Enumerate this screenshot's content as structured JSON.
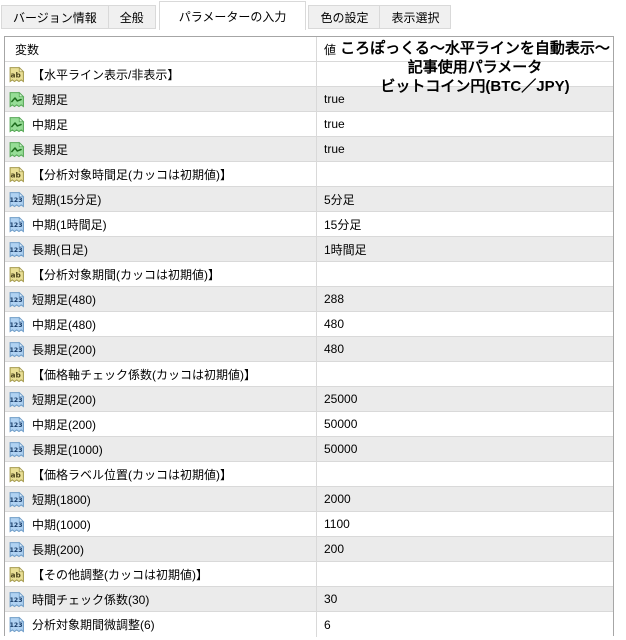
{
  "tabs": [
    {
      "label": "バージョン情報",
      "active": false
    },
    {
      "label": "全般",
      "active": false
    },
    {
      "label": "パラメーターの入力",
      "active": true
    },
    {
      "label": "色の設定",
      "active": false
    },
    {
      "label": "表示選択",
      "active": false
    }
  ],
  "table": {
    "columns": {
      "variable": "変数",
      "value": "値"
    },
    "rows": [
      {
        "type": "section",
        "label": "【水平ライン表示/非表示】",
        "value": ""
      },
      {
        "type": "bool",
        "label": "短期足",
        "value": "true"
      },
      {
        "type": "bool",
        "label": "中期足",
        "value": "true"
      },
      {
        "type": "bool",
        "label": "長期足",
        "value": "true"
      },
      {
        "type": "section",
        "label": "【分析対象時間足(カッコは初期値)】",
        "value": ""
      },
      {
        "type": "int",
        "label": "短期(15分足)",
        "value": "5分足"
      },
      {
        "type": "int",
        "label": "中期(1時間足)",
        "value": "15分足"
      },
      {
        "type": "int",
        "label": "長期(日足)",
        "value": "1時間足"
      },
      {
        "type": "section",
        "label": "【分析対象期間(カッコは初期値)】",
        "value": ""
      },
      {
        "type": "int",
        "label": "短期足(480)",
        "value": "288"
      },
      {
        "type": "int",
        "label": "中期足(480)",
        "value": "480"
      },
      {
        "type": "int",
        "label": "長期足(200)",
        "value": "480"
      },
      {
        "type": "section",
        "label": "【価格軸チェック係数(カッコは初期値)】",
        "value": ""
      },
      {
        "type": "int",
        "label": "短期足(200)",
        "value": "25000"
      },
      {
        "type": "int",
        "label": "中期足(200)",
        "value": "50000"
      },
      {
        "type": "int",
        "label": "長期足(1000)",
        "value": "50000"
      },
      {
        "type": "section",
        "label": "【価格ラベル位置(カッコは初期値)】",
        "value": ""
      },
      {
        "type": "int",
        "label": "短期(1800)",
        "value": "2000"
      },
      {
        "type": "int",
        "label": "中期(1000)",
        "value": "1100"
      },
      {
        "type": "int",
        "label": "長期(200)",
        "value": "200"
      },
      {
        "type": "section",
        "label": "【その他調整(カッコは初期値)】",
        "value": ""
      },
      {
        "type": "int",
        "label": "時間チェック係数(30)",
        "value": "30"
      },
      {
        "type": "int",
        "label": "分析対象期間微調整(6)",
        "value": "6"
      }
    ]
  },
  "annotation": {
    "lines": [
      "ころぽっくる〜水平ラインを自動表示〜",
      "記事使用パラメータ",
      "ビットコイン円(BTC／JPY)"
    ]
  },
  "icons": {
    "section": "string-ab-icon",
    "bool": "bool-line-chart-icon",
    "int": "integer-123-icon"
  },
  "colors": {
    "row_alt": "#ebebeb",
    "row_separator": "#d9d9d9",
    "table_border": "#a6a6a6",
    "tab_inactive_bg": "#f0f0f0",
    "icon_string_bg": "#e9df96",
    "icon_bool_bg": "#96dd96",
    "icon_int_bg": "#b0d2f2",
    "text": "#000000"
  }
}
